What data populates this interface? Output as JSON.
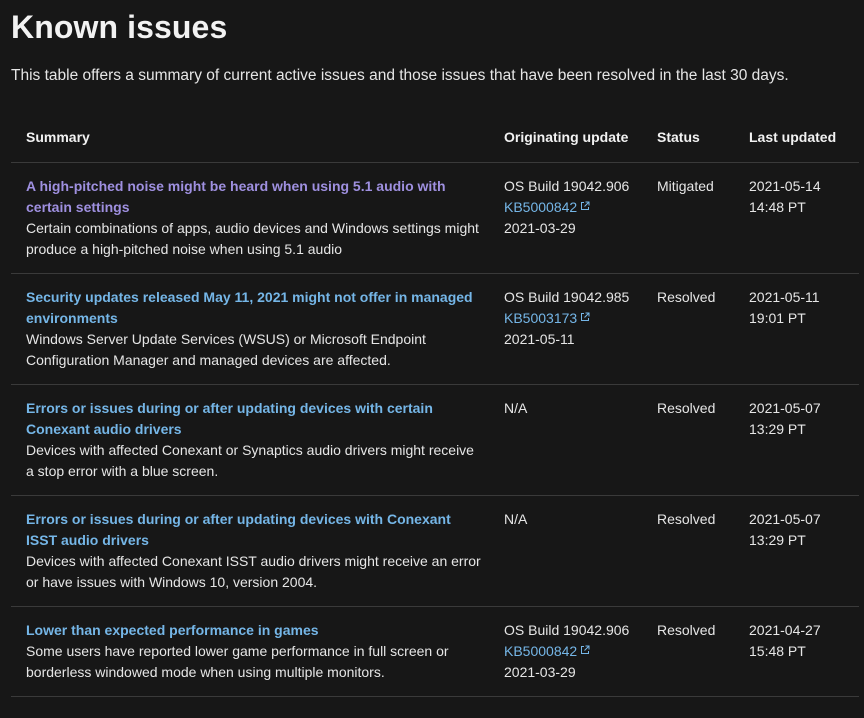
{
  "page": {
    "title": "Known issues",
    "intro": "This table offers a summary of current active issues and those issues that have been resolved in the last 30 days."
  },
  "table": {
    "headers": {
      "summary": "Summary",
      "originating_update": "Originating update",
      "status": "Status",
      "last_updated": "Last updated"
    },
    "rows": [
      {
        "title": "A high-pitched noise might be heard when using 5.1 audio with certain settings",
        "description": "Certain combinations of apps, audio devices and Windows settings might produce a high-pitched noise when using 5.1 audio",
        "build": "OS Build 19042.906",
        "kb": "KB5000842",
        "kb_date": "2021-03-29",
        "status": "Mitigated",
        "updated_date": "2021-05-14",
        "updated_time": "14:48 PT",
        "visited": true
      },
      {
        "title": "Security updates released May 11, 2021 might not offer in managed environments",
        "description": "Windows Server Update Services (WSUS) or Microsoft Endpoint Configuration Manager and managed devices are affected.",
        "build": "OS Build 19042.985",
        "kb": "KB5003173",
        "kb_date": "2021-05-11",
        "status": "Resolved",
        "updated_date": "2021-05-11",
        "updated_time": "19:01 PT",
        "visited": false
      },
      {
        "title": "Errors or issues during or after updating devices with certain Conexant audio drivers",
        "description": "Devices with affected Conexant or Synaptics audio drivers might receive a stop error with a blue screen.",
        "build": "N/A",
        "kb": "",
        "kb_date": "",
        "status": "Resolved",
        "updated_date": "2021-05-07",
        "updated_time": "13:29 PT",
        "visited": false
      },
      {
        "title": "Errors or issues during or after updating devices with Conexant ISST audio drivers",
        "description": "Devices with affected Conexant ISST audio drivers might receive an error or have issues with Windows 10, version 2004.",
        "build": "N/A",
        "kb": "",
        "kb_date": "",
        "status": "Resolved",
        "updated_date": "2021-05-07",
        "updated_time": "13:29 PT",
        "visited": false
      },
      {
        "title": "Lower than expected performance in games",
        "description": "Some users have reported lower game performance in full screen or borderless windowed mode when using multiple monitors.",
        "build": "OS Build 19042.906",
        "kb": "KB5000842",
        "kb_date": "2021-03-29",
        "status": "Resolved",
        "updated_date": "2021-04-27",
        "updated_time": "15:48 PT",
        "visited": false
      }
    ]
  },
  "icons": {
    "external_link": "external-link-icon"
  },
  "colors": {
    "background": "#171717",
    "link": "#75b6e7",
    "visited_link": "#9f90e0",
    "divider": "#3a3a3a"
  }
}
